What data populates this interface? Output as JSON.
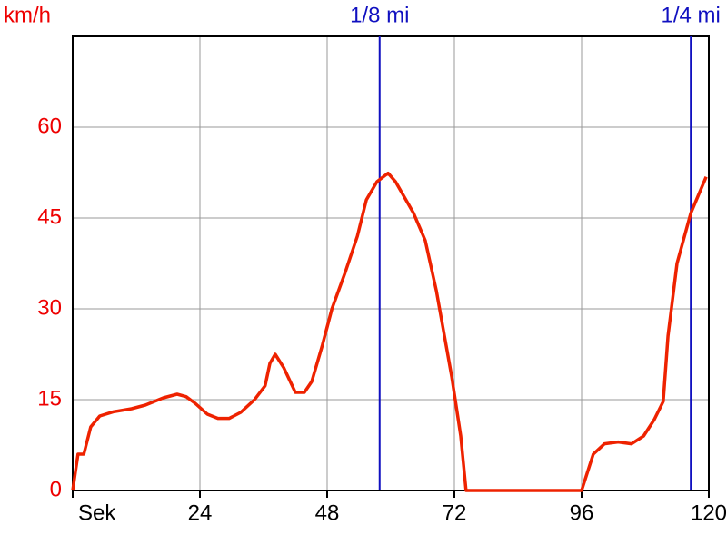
{
  "chart_data": {
    "type": "line",
    "y_label": "km/h",
    "x": [
      0,
      1.0,
      2.1,
      3.4,
      5.1,
      7.7,
      11.1,
      13.7,
      17.1,
      19.7,
      21.4,
      23.1,
      25.4,
      27.4,
      29.5,
      31.7,
      34.3,
      36.3,
      37.2,
      38.2,
      39.8,
      42,
      43.7,
      45.1,
      47.1,
      48.9,
      51.4,
      53.7,
      55.4,
      57.4,
      59.5,
      60.9,
      64.3,
      66.5,
      68.6,
      71.5,
      73.2,
      74.2,
      96,
      98.2,
      100.3,
      102.9,
      105.4,
      107.7,
      109.7,
      111.4,
      112.3,
      114,
      116.6,
      119.5
    ],
    "series": [
      {
        "color": "#ee2200",
        "values": [
          0,
          6,
          6,
          10.5,
          12.3,
          13,
          13.5,
          14.1,
          15.3,
          15.9,
          15.5,
          14.4,
          12.6,
          11.9,
          11.9,
          12.9,
          15,
          17.3,
          21,
          22.5,
          20.3,
          16.2,
          16.2,
          18,
          24,
          30,
          36,
          42,
          48,
          51,
          52.4,
          51,
          45.8,
          41.3,
          33,
          18.8,
          9,
          0,
          0,
          6,
          7.7,
          8,
          7.7,
          9,
          11.7,
          14.7,
          25.5,
          37.5,
          45.8,
          51.8
        ]
      }
    ],
    "xlim": [
      0,
      120
    ],
    "ylim": [
      0,
      75
    ],
    "xticks": [
      {
        "value": 0,
        "label": "Sek"
      },
      24,
      48,
      72,
      96,
      120
    ],
    "yticks": [
      0,
      15,
      30,
      45,
      60
    ],
    "grid": true,
    "markers": [
      {
        "x": 57.9,
        "label": "1/8 mi",
        "color": "#1010c0"
      },
      {
        "x": 116.6,
        "label": "1/4 mi",
        "color": "#1010c0"
      }
    ]
  }
}
